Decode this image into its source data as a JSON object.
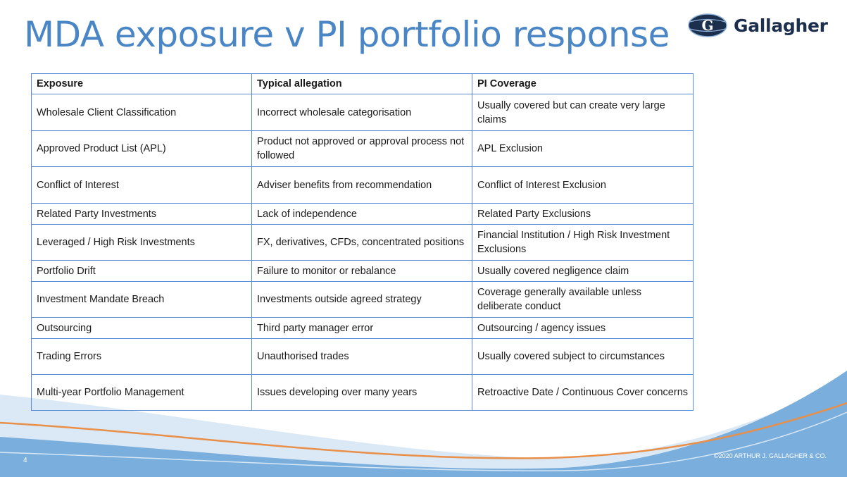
{
  "slide": {
    "title": "MDA exposure v PI portfolio response",
    "page_number": "4",
    "copyright": "©2020 ARTHUR J. GALLAGHER & CO.",
    "logo_text": "Gallagher"
  },
  "table": {
    "headers": [
      "Exposure",
      "Typical allegation",
      "PI Coverage"
    ],
    "rows": [
      [
        "Wholesale Client Classification",
        "Incorrect wholesale categorisation",
        "Usually covered but can create very large claims"
      ],
      [
        "Approved Product List (APL)",
        "Product not approved or approval process not followed",
        "APL Exclusion"
      ],
      [
        "Conflict of Interest",
        "Adviser benefits from recommendation",
        "Conflict of Interest Exclusion"
      ],
      [
        "Related Party Investments",
        "Lack of independence",
        "Related Party Exclusions"
      ],
      [
        "Leveraged / High Risk Investments",
        "FX, derivatives, CFDs, concentrated positions",
        "Financial Institution / High Risk Investment Exclusions"
      ],
      [
        "Portfolio Drift",
        "Failure to monitor or rebalance",
        "Usually covered negligence claim"
      ],
      [
        "Investment Mandate Breach",
        "Investments outside agreed strategy",
        "Coverage generally available unless deliberate conduct"
      ],
      [
        "Outsourcing",
        "Third party manager error",
        "Outsourcing / agency issues"
      ],
      [
        "Trading Errors",
        "Unauthorised trades",
        "Usually covered subject to circumstances"
      ],
      [
        "Multi-year Portfolio Management",
        "Issues developing over many years",
        "Retroactive Date / Continuous Cover concerns"
      ]
    ]
  },
  "colors": {
    "title": "#4a86c6",
    "table_border": "#5b8ad6",
    "wave_blue": "#7aaedc",
    "wave_orange": "#e8904a",
    "logo_navy": "#1c2f4d"
  }
}
